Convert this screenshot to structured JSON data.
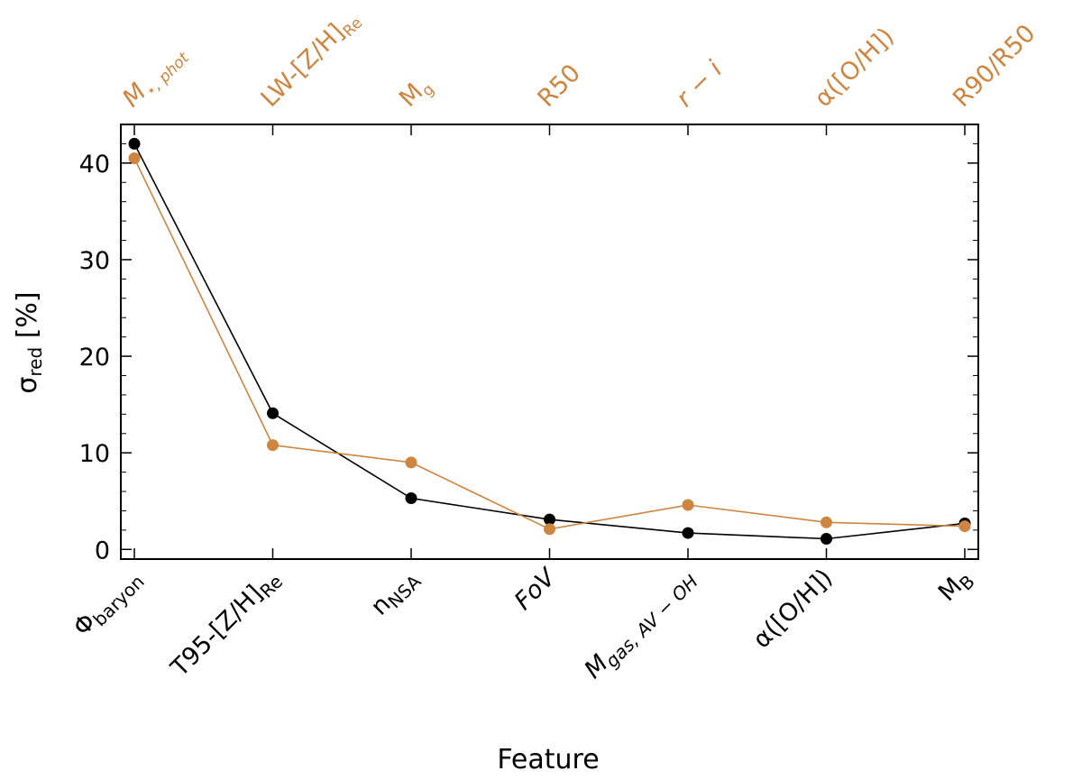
{
  "chart_data": {
    "type": "line",
    "xlabel": "Feature",
    "ylabel_main": "σ",
    "ylabel_sub": "red",
    "ylabel_unit": " [%]",
    "ylim": [
      -1,
      44
    ],
    "yticks": [
      0,
      10,
      20,
      30,
      40
    ],
    "grid": false,
    "categories_bottom": [
      {
        "text": "Φ",
        "sub": "baryon",
        "italic": false,
        "color": "#000000"
      },
      {
        "text": "T95-[Z/H]",
        "sub": "Re",
        "italic": false,
        "color": "#000000"
      },
      {
        "text": "n",
        "sub": "NSA",
        "italic": false,
        "color": "#000000"
      },
      {
        "text": "FoV",
        "sub": "",
        "italic": true,
        "color": "#000000"
      },
      {
        "text": "M",
        "sub": "gas, AV − OH",
        "italic": true,
        "color": "#000000"
      },
      {
        "text": "α([O/H])",
        "sub": "",
        "italic": false,
        "color": "#000000"
      },
      {
        "text": "M",
        "sub": "B",
        "italic": false,
        "color": "#000000"
      }
    ],
    "categories_top": [
      {
        "text": "M",
        "sub": "⋆, phot",
        "italic": true,
        "color": "#cd853f"
      },
      {
        "text": "LW-[Z/H]",
        "sub": "Re",
        "italic": false,
        "color": "#cd853f"
      },
      {
        "text": "M",
        "sub": "g",
        "italic": false,
        "color": "#cd853f"
      },
      {
        "text": "R50",
        "sub": "",
        "italic": false,
        "color": "#cd853f"
      },
      {
        "text": "r − i",
        "sub": "",
        "italic": true,
        "color": "#cd853f"
      },
      {
        "text": "α([O/H])",
        "sub": "",
        "italic": false,
        "color": "#cd853f"
      },
      {
        "text": "R90/R50",
        "sub": "",
        "italic": false,
        "color": "#cd853f"
      }
    ],
    "series": [
      {
        "color": "#000000",
        "values": [
          42.0,
          14.1,
          5.3,
          3.1,
          1.7,
          1.1,
          2.7
        ]
      },
      {
        "color": "#cd853f",
        "values": [
          40.5,
          10.8,
          9.0,
          2.1,
          4.6,
          2.8,
          2.4
        ]
      }
    ]
  }
}
